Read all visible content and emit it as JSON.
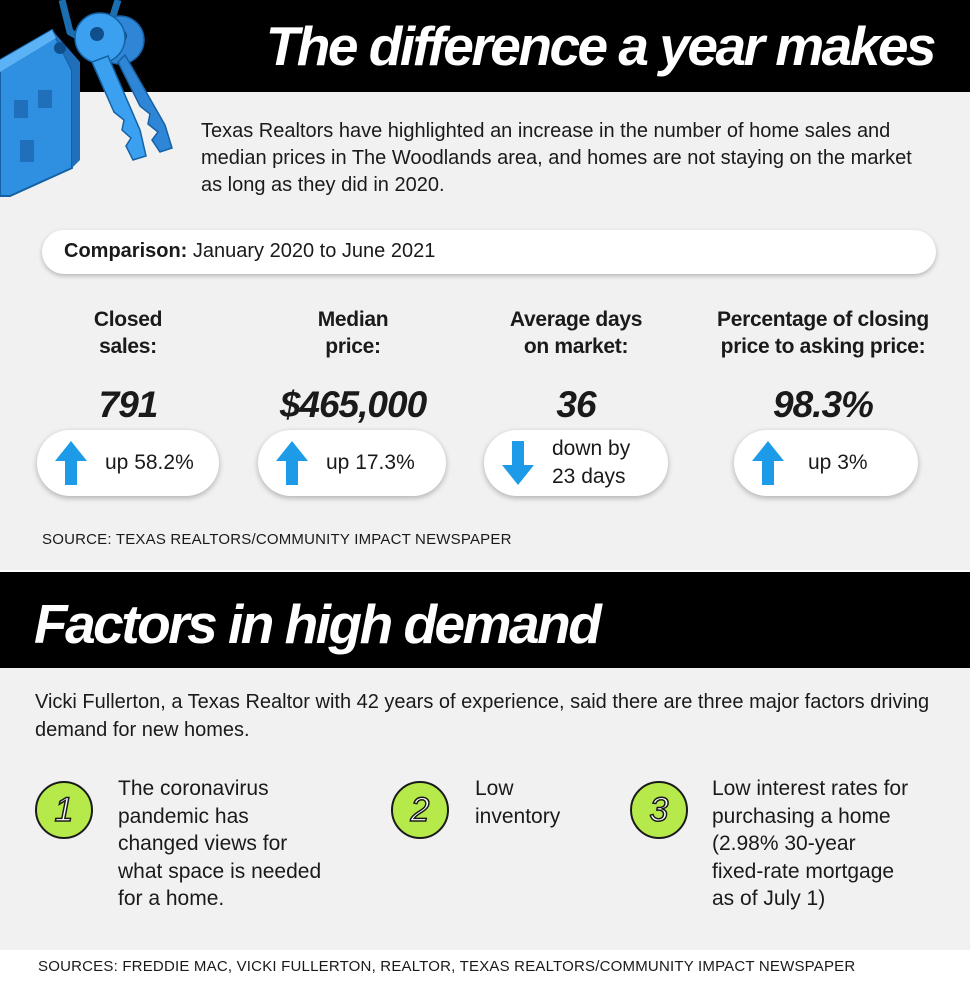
{
  "header": {
    "title": "The difference a year makes"
  },
  "intro": "Texas Realtors have highlighted an increase in the number of home sales and median prices in The Woodlands area, and homes are not staying on the market as long as they did in 2020.",
  "comparison": {
    "label": "Comparison:",
    "value": "January 2020 to June 2021"
  },
  "stats": [
    {
      "label_line1": "Closed",
      "label_line2": "sales:",
      "value": "791",
      "change_direction": "up",
      "change_line1": "up 58.2%",
      "change_line2": ""
    },
    {
      "label_line1": "Median",
      "label_line2": "price:",
      "value": "$465,000",
      "change_direction": "up",
      "change_line1": "up 17.3%",
      "change_line2": ""
    },
    {
      "label_line1": "Average days",
      "label_line2": "on market:",
      "value": "36",
      "change_direction": "down",
      "change_line1": "down by",
      "change_line2": "23 days"
    },
    {
      "label_line1": "Percentage of closing",
      "label_line2": "price to asking price:",
      "value": "98.3%",
      "change_direction": "up",
      "change_line1": "up 3%",
      "change_line2": ""
    }
  ],
  "source1": "SOURCE: TEXAS REALTORS/COMMUNITY IMPACT NEWSPAPER",
  "section2": {
    "title": "Factors in high demand",
    "intro": "Vicki Fullerton, a Texas Realtor with 42 years of experience, said there are three major factors driving demand for new homes.",
    "factors": [
      {
        "number": "1",
        "lines": [
          "The coronavirus",
          "pandemic has",
          "changed views for",
          "what space is needed",
          "for a home."
        ]
      },
      {
        "number": "2",
        "lines": [
          "Low",
          "inventory"
        ]
      },
      {
        "number": "3",
        "lines": [
          "Low interest rates for",
          "purchasing a home",
          "(2.98% 30-year",
          "fixed-rate mortgage",
          "as of July 1)"
        ]
      }
    ]
  },
  "source2": "SOURCES: FREDDIE MAC, VICKI FULLERTON, REALTOR, TEXAS REALTORS/COMMUNITY IMPACT NEWSPAPER",
  "colors": {
    "banner": "#000000",
    "panel": "#f1f1f1",
    "arrow_blue": "#1e9be8",
    "factor_green": "#b5ea4a"
  },
  "icons": {
    "keys": "house-keys-illustration",
    "up": "arrow-up-icon",
    "down": "arrow-down-icon"
  }
}
